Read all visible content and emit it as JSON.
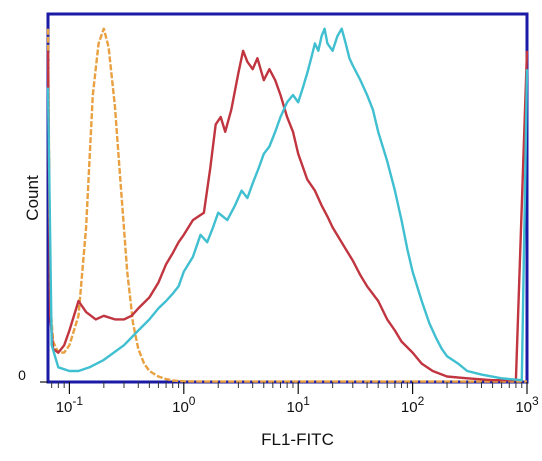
{
  "chart_data": {
    "type": "line",
    "title": "",
    "xlabel": "FL1-FITC",
    "ylabel": "Count",
    "x_scale": "log",
    "xlim": [
      0.065,
      1000
    ],
    "ylim": [
      0,
      100
    ],
    "grid": false,
    "legend": "none",
    "x_ticks": [
      {
        "value": 0.1,
        "base": "10",
        "exp": "-1"
      },
      {
        "value": 1,
        "base": "10",
        "exp": "0"
      },
      {
        "value": 10,
        "base": "10",
        "exp": "1"
      },
      {
        "value": 100,
        "base": "10",
        "exp": "2"
      },
      {
        "value": 1000,
        "base": "10",
        "exp": "3"
      }
    ],
    "y_ticks": [
      {
        "value": 0,
        "label": "0"
      }
    ],
    "series": [
      {
        "color": "#e8a040",
        "style": "dashed",
        "points": [
          [
            0.065,
            96
          ],
          [
            0.068,
            22
          ],
          [
            0.072,
            11
          ],
          [
            0.08,
            8
          ],
          [
            0.09,
            8
          ],
          [
            0.1,
            10
          ],
          [
            0.12,
            18
          ],
          [
            0.14,
            42
          ],
          [
            0.16,
            78
          ],
          [
            0.18,
            92
          ],
          [
            0.2,
            96
          ],
          [
            0.22,
            91
          ],
          [
            0.25,
            75
          ],
          [
            0.28,
            54
          ],
          [
            0.32,
            30
          ],
          [
            0.36,
            16
          ],
          [
            0.4,
            9
          ],
          [
            0.45,
            5
          ],
          [
            0.5,
            3
          ],
          [
            0.6,
            1.5
          ],
          [
            0.7,
            0.8
          ],
          [
            0.8,
            0.4
          ],
          [
            1.0,
            0.2
          ],
          [
            1.5,
            0.1
          ],
          [
            1000,
            0.1
          ]
        ]
      },
      {
        "color": "#c0353f",
        "style": "solid",
        "points": [
          [
            0.065,
            90
          ],
          [
            0.068,
            18
          ],
          [
            0.072,
            9
          ],
          [
            0.08,
            8
          ],
          [
            0.09,
            10
          ],
          [
            0.1,
            14
          ],
          [
            0.12,
            22
          ],
          [
            0.14,
            19
          ],
          [
            0.17,
            17
          ],
          [
            0.2,
            18
          ],
          [
            0.25,
            17
          ],
          [
            0.3,
            17
          ],
          [
            0.35,
            18
          ],
          [
            0.4,
            20
          ],
          [
            0.5,
            23
          ],
          [
            0.6,
            27
          ],
          [
            0.7,
            32
          ],
          [
            0.8,
            35
          ],
          [
            0.9,
            38
          ],
          [
            1.0,
            40
          ],
          [
            1.2,
            44
          ],
          [
            1.5,
            46
          ],
          [
            1.7,
            58
          ],
          [
            1.9,
            70
          ],
          [
            2.1,
            72
          ],
          [
            2.3,
            68
          ],
          [
            2.6,
            74
          ],
          [
            3.0,
            84
          ],
          [
            3.3,
            90
          ],
          [
            3.6,
            87
          ],
          [
            4.0,
            85
          ],
          [
            4.4,
            88
          ],
          [
            5.0,
            82
          ],
          [
            5.6,
            85
          ],
          [
            6.3,
            82
          ],
          [
            7.0,
            78
          ],
          [
            8.0,
            72
          ],
          [
            9.0,
            68
          ],
          [
            10,
            62
          ],
          [
            12,
            55
          ],
          [
            14,
            52
          ],
          [
            16,
            48
          ],
          [
            18,
            45
          ],
          [
            20,
            42
          ],
          [
            25,
            37
          ],
          [
            30,
            33
          ],
          [
            35,
            29
          ],
          [
            40,
            26
          ],
          [
            50,
            22
          ],
          [
            60,
            17
          ],
          [
            70,
            14
          ],
          [
            80,
            11
          ],
          [
            100,
            8
          ],
          [
            120,
            5
          ],
          [
            150,
            3
          ],
          [
            200,
            1.5
          ],
          [
            300,
            1
          ],
          [
            500,
            0.5
          ],
          [
            800,
            0.5
          ],
          [
            1000,
            90
          ]
        ]
      },
      {
        "color": "#3fbfd0",
        "style": "solid",
        "points": [
          [
            0.065,
            80
          ],
          [
            0.07,
            10
          ],
          [
            0.08,
            4
          ],
          [
            0.1,
            3
          ],
          [
            0.12,
            3
          ],
          [
            0.15,
            4
          ],
          [
            0.2,
            6
          ],
          [
            0.3,
            10
          ],
          [
            0.4,
            14
          ],
          [
            0.5,
            17
          ],
          [
            0.6,
            20
          ],
          [
            0.7,
            22
          ],
          [
            0.8,
            24
          ],
          [
            0.9,
            26
          ],
          [
            1.0,
            30
          ],
          [
            1.2,
            34
          ],
          [
            1.4,
            40
          ],
          [
            1.6,
            38
          ],
          [
            1.8,
            42
          ],
          [
            2.0,
            46
          ],
          [
            2.4,
            44
          ],
          [
            2.8,
            48
          ],
          [
            3.2,
            52
          ],
          [
            3.6,
            50
          ],
          [
            4.0,
            54
          ],
          [
            4.5,
            58
          ],
          [
            5.0,
            62
          ],
          [
            5.6,
            64
          ],
          [
            6.3,
            68
          ],
          [
            7.0,
            72
          ],
          [
            8.0,
            76
          ],
          [
            9.0,
            78
          ],
          [
            10,
            76
          ],
          [
            11,
            80
          ],
          [
            12,
            84
          ],
          [
            13,
            88
          ],
          [
            14,
            92
          ],
          [
            15,
            90
          ],
          [
            16,
            94
          ],
          [
            17,
            96
          ],
          [
            18,
            92
          ],
          [
            20,
            90
          ],
          [
            22,
            94
          ],
          [
            24,
            96
          ],
          [
            26,
            92
          ],
          [
            28,
            88
          ],
          [
            30,
            86
          ],
          [
            35,
            82
          ],
          [
            40,
            78
          ],
          [
            45,
            74
          ],
          [
            50,
            68
          ],
          [
            60,
            60
          ],
          [
            70,
            52
          ],
          [
            80,
            44
          ],
          [
            90,
            36
          ],
          [
            100,
            30
          ],
          [
            120,
            22
          ],
          [
            140,
            16
          ],
          [
            160,
            12
          ],
          [
            180,
            9
          ],
          [
            200,
            7
          ],
          [
            250,
            5
          ],
          [
            300,
            3
          ],
          [
            400,
            2
          ],
          [
            600,
            1
          ],
          [
            900,
            0.5
          ],
          [
            1000,
            85
          ]
        ]
      }
    ]
  }
}
